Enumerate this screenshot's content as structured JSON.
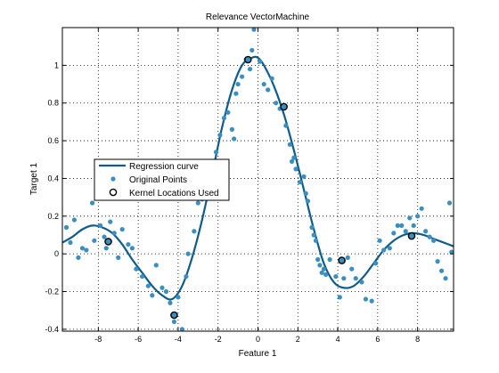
{
  "chart_data": {
    "type": "scatter",
    "title": "Relevance VectorMachine",
    "xlabel": "Feature 1",
    "ylabel": "Target 1",
    "xlim": [
      -9.8,
      9.8
    ],
    "ylim": [
      -0.41,
      1.2
    ],
    "x_ticks": [
      -8,
      -6,
      -4,
      -2,
      0,
      2,
      4,
      6,
      8
    ],
    "x_tick_labels": [
      "-8",
      "-6",
      "-4",
      "-2",
      "0",
      "2",
      "4",
      "6",
      "8"
    ],
    "y_ticks": [
      -0.4,
      -0.2,
      0,
      0.2,
      0.4,
      0.6,
      0.8,
      1
    ],
    "y_tick_labels": [
      "-0.4",
      "-0.2",
      "0",
      "0.2",
      "0.4",
      "0.6",
      "0.8",
      "1"
    ],
    "grid": true,
    "legend_position": "center-left",
    "series": [
      {
        "name": "Regression curve",
        "kind": "line",
        "color": "#0d5c8c",
        "x": [
          -9.8,
          -9.3,
          -8.8,
          -8.3,
          -7.8,
          -7.3,
          -6.8,
          -6.3,
          -5.8,
          -5.3,
          -4.8,
          -4.3,
          -3.8,
          -3.3,
          -2.8,
          -2.3,
          -1.8,
          -1.3,
          -0.8,
          -0.3,
          0.0,
          0.3,
          0.8,
          1.3,
          1.8,
          2.3,
          2.8,
          3.3,
          3.8,
          4.3,
          4.8,
          5.3,
          5.8,
          6.3,
          6.8,
          7.3,
          7.8,
          8.3,
          8.8,
          9.3,
          9.8
        ],
        "y": [
          0.06,
          0.09,
          0.13,
          0.15,
          0.14,
          0.11,
          0.05,
          -0.03,
          -0.1,
          -0.17,
          -0.22,
          -0.24,
          -0.17,
          -0.02,
          0.18,
          0.42,
          0.67,
          0.87,
          1.0,
          1.04,
          1.04,
          1.0,
          0.89,
          0.74,
          0.55,
          0.34,
          0.13,
          -0.05,
          -0.15,
          -0.18,
          -0.17,
          -0.12,
          -0.05,
          0.02,
          0.07,
          0.1,
          0.11,
          0.1,
          0.08,
          0.06,
          0.04
        ]
      },
      {
        "name": "Original Points",
        "kind": "scatter",
        "color": "#3a8fc0",
        "points": [
          [
            -9.6,
            0.14
          ],
          [
            -9.4,
            0.06
          ],
          [
            -9.2,
            0.18
          ],
          [
            -9.0,
            -0.02
          ],
          [
            -8.8,
            0.03
          ],
          [
            -8.6,
            0.02
          ],
          [
            -8.3,
            0.27
          ],
          [
            -8.2,
            0.07
          ],
          [
            -8.0,
            0.3
          ],
          [
            -7.9,
            0.15
          ],
          [
            -7.7,
            0.09
          ],
          [
            -7.6,
            0.03
          ],
          [
            -7.4,
            0.17
          ],
          [
            -7.2,
            0.11
          ],
          [
            -7.0,
            -0.02
          ],
          [
            -6.8,
            0.13
          ],
          [
            -6.5,
            0.05
          ],
          [
            -6.3,
            0.03
          ],
          [
            -6.1,
            -0.08
          ],
          [
            -5.8,
            -0.12
          ],
          [
            -5.5,
            -0.17
          ],
          [
            -5.3,
            -0.22
          ],
          [
            -5.1,
            -0.06
          ],
          [
            -4.8,
            -0.18
          ],
          [
            -4.6,
            -0.2
          ],
          [
            -4.4,
            -0.26
          ],
          [
            -4.2,
            -0.36
          ],
          [
            -4.0,
            -0.23
          ],
          [
            -3.8,
            -0.4
          ],
          [
            -3.6,
            -0.12
          ],
          [
            -3.5,
            0.0
          ],
          [
            -3.2,
            0.12
          ],
          [
            -3.0,
            0.27
          ],
          [
            -2.8,
            0.29
          ],
          [
            -2.6,
            0.37
          ],
          [
            -2.4,
            0.4
          ],
          [
            -2.3,
            0.49
          ],
          [
            -2.1,
            0.54
          ],
          [
            -1.9,
            0.63
          ],
          [
            -1.7,
            0.72
          ],
          [
            -1.5,
            0.75
          ],
          [
            -1.3,
            0.66
          ],
          [
            -1.2,
            0.61
          ],
          [
            -1.1,
            0.85
          ],
          [
            -1.0,
            0.9
          ],
          [
            -0.8,
            0.94
          ],
          [
            -0.6,
            1.03
          ],
          [
            -0.4,
            0.98
          ],
          [
            -0.3,
            1.08
          ],
          [
            -0.2,
            1.19
          ],
          [
            0.1,
            1.02
          ],
          [
            0.3,
            0.9
          ],
          [
            0.5,
            0.87
          ],
          [
            0.7,
            0.93
          ],
          [
            0.9,
            0.8
          ],
          [
            1.1,
            0.77
          ],
          [
            1.4,
            0.68
          ],
          [
            1.6,
            0.58
          ],
          [
            1.7,
            0.49
          ],
          [
            1.8,
            0.51
          ],
          [
            1.9,
            0.45
          ],
          [
            2.1,
            0.38
          ],
          [
            2.3,
            0.41
          ],
          [
            2.4,
            0.32
          ],
          [
            2.5,
            0.28
          ],
          [
            2.7,
            0.14
          ],
          [
            2.8,
            0.1
          ],
          [
            2.9,
            0.07
          ],
          [
            3.0,
            -0.03
          ],
          [
            3.1,
            -0.06
          ],
          [
            3.2,
            -0.1
          ],
          [
            3.3,
            -0.08
          ],
          [
            3.4,
            -0.11
          ],
          [
            3.6,
            -0.03
          ],
          [
            3.9,
            -0.12
          ],
          [
            4.1,
            -0.23
          ],
          [
            4.3,
            -0.13
          ],
          [
            4.5,
            -0.02
          ],
          [
            4.7,
            -0.08
          ],
          [
            4.9,
            -0.13
          ],
          [
            5.2,
            -0.15
          ],
          [
            5.4,
            -0.24
          ],
          [
            5.7,
            -0.25
          ],
          [
            5.9,
            -0.05
          ],
          [
            6.1,
            0.07
          ],
          [
            6.3,
            0.02
          ],
          [
            6.6,
            0.03
          ],
          [
            6.8,
            0.11
          ],
          [
            7.0,
            0.15
          ],
          [
            7.2,
            0.15
          ],
          [
            7.4,
            0.12
          ],
          [
            7.6,
            0.19
          ],
          [
            7.8,
            0.15
          ],
          [
            8.0,
            0.2
          ],
          [
            8.2,
            0.24
          ],
          [
            8.4,
            0.12
          ],
          [
            8.6,
            0.09
          ],
          [
            8.8,
            0.07
          ],
          [
            9.0,
            -0.04
          ],
          [
            9.2,
            -0.09
          ],
          [
            9.4,
            -0.13
          ],
          [
            9.6,
            0.27
          ],
          [
            9.7,
            0.01
          ]
        ]
      },
      {
        "name": "Kernel Locations Used",
        "kind": "marker",
        "color": "#000000",
        "points": [
          [
            -7.5,
            0.065
          ],
          [
            -4.2,
            -0.325
          ],
          [
            -0.5,
            1.03
          ],
          [
            1.3,
            0.78
          ],
          [
            4.2,
            -0.035
          ],
          [
            7.7,
            0.095
          ]
        ]
      }
    ]
  }
}
